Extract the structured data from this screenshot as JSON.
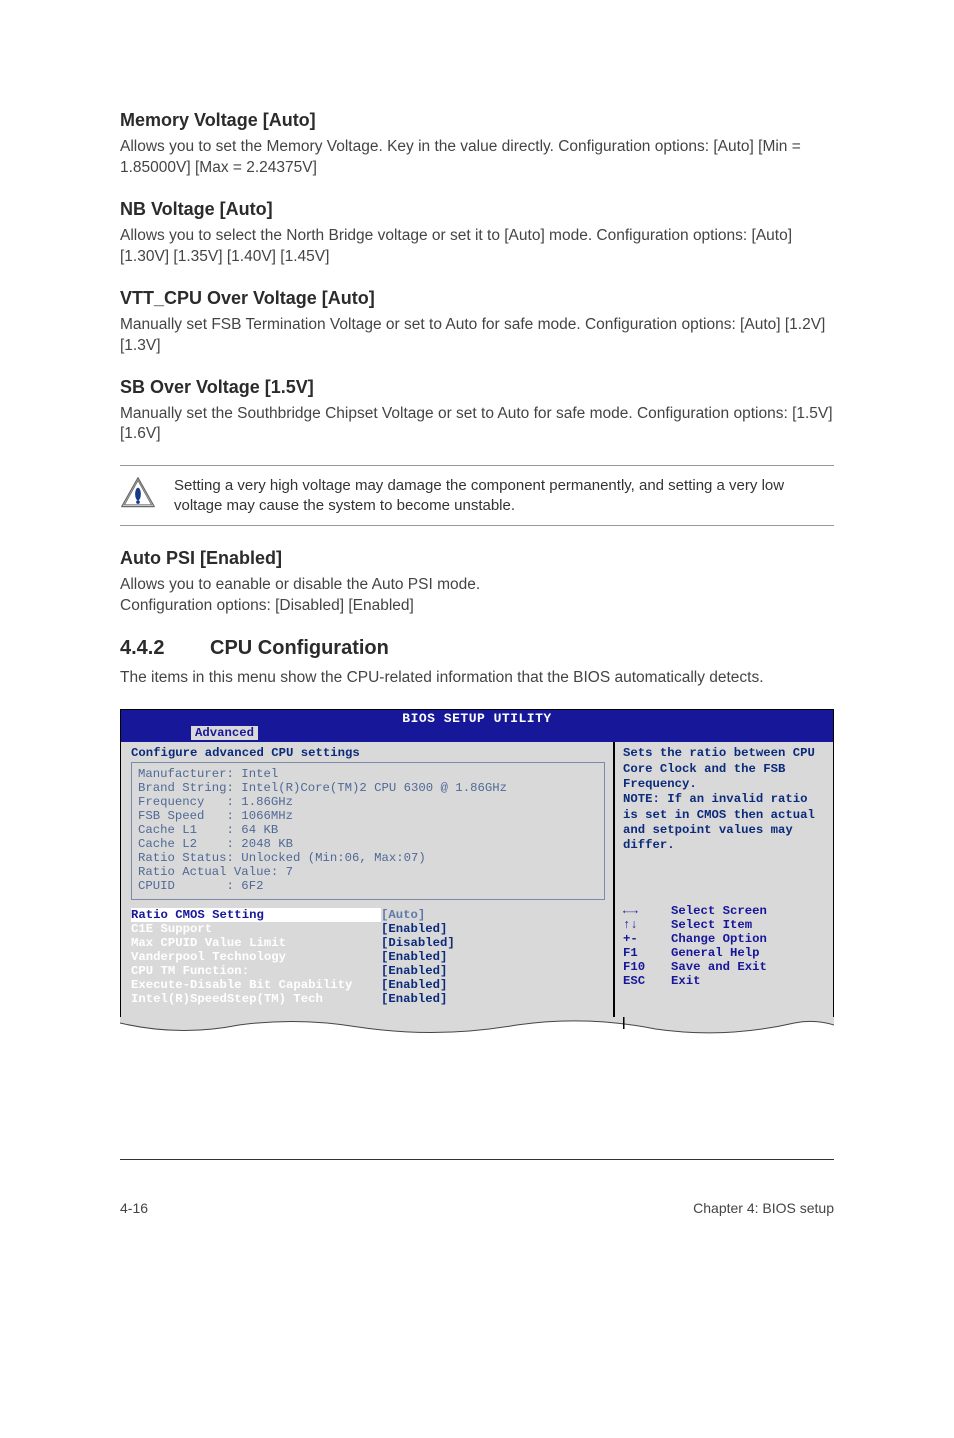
{
  "sections": {
    "memVolt": {
      "title": "Memory Voltage [Auto]",
      "body": "Allows you to set the Memory Voltage. Key in the value directly. Configuration options: [Auto] [Min = 1.85000V] [Max = 2.24375V]"
    },
    "nbVolt": {
      "title": "NB Voltage [Auto]",
      "body": "Allows you to select the North Bridge voltage or set it to [Auto] mode. Configuration options: [Auto] [1.30V] [1.35V] [1.40V] [1.45V]"
    },
    "vttCpu": {
      "title": "VTT_CPU Over Voltage [Auto]",
      "body": "Manually set FSB Termination Voltage or set to Auto for safe mode. Configuration options: [Auto] [1.2V] [1.3V]"
    },
    "sbOver": {
      "title": "SB Over Voltage [1.5V]",
      "body": "Manually set the Southbridge Chipset Voltage or set to Auto for safe mode. Configuration options: [1.5V] [1.6V]"
    },
    "autoPsi": {
      "title": "Auto PSI [Enabled]",
      "body": "Allows you to eanable or disable the Auto PSI mode.\nConfiguration options: [Disabled] [Enabled]"
    }
  },
  "note": "Setting a very high voltage may damage the component permanently, and setting a very low voltage may cause the system to become unstable.",
  "subchapter": {
    "num": "4.4.2",
    "title": "CPU Configuration",
    "intro": "The items in this menu show the CPU-related information that the BIOS automatically detects."
  },
  "bios": {
    "title": "BIOS SETUP UTILITY",
    "tab": "Advanced",
    "heading": "Configure advanced CPU settings",
    "info": [
      "Manufacturer: Intel",
      "Brand String: Intel(R)Core(TM)2 CPU 6300 @ 1.86GHz",
      "Frequency   : 1.86GHz",
      "FSB Speed   : 1066MHz",
      "Cache L1    : 64 KB",
      "Cache L2    : 2048 KB",
      "Ratio Status: Unlocked (Min:06, Max:07)",
      "Ratio Actual Value: 7",
      "CPUID       : 6F2"
    ],
    "settings": [
      {
        "label": "Ratio CMOS Setting",
        "value": "[Auto]",
        "sel": true
      },
      {
        "label": "C1E Support",
        "value": "[Enabled]"
      },
      {
        "label": "Max CPUID Value Limit",
        "value": "[Disabled]"
      },
      {
        "label": "Vanderpool Technology",
        "value": "[Enabled]"
      },
      {
        "label": "CPU TM Function:",
        "value": "[Enabled]"
      },
      {
        "label": "Execute-Disable Bit Capability",
        "value": "[Enabled]"
      },
      {
        "label": "Intel(R)SpeedStep(TM) Tech",
        "value": "[Enabled]"
      }
    ],
    "help": "Sets the ratio between CPU Core Clock and the FSB Frequency.\nNOTE: If an invalid ratio is set in CMOS then actual and setpoint values may differ.",
    "keys": [
      {
        "k": "←→",
        "d": "Select Screen"
      },
      {
        "k": "↑↓",
        "d": "Select Item"
      },
      {
        "k": "+-",
        "d": "Change Option"
      },
      {
        "k": "F1",
        "d": "General Help"
      },
      {
        "k": "F10",
        "d": "Save and Exit"
      },
      {
        "k": "ESC",
        "d": "Exit"
      }
    ]
  },
  "footer": {
    "left": "4-16",
    "right": "Chapter 4: BIOS setup"
  },
  "colors": {
    "biosBlue": "#17179a",
    "biosGrey": "#d9d9d9",
    "biosDark": "#0a2a7a",
    "biosLight": "#4f6a97"
  }
}
